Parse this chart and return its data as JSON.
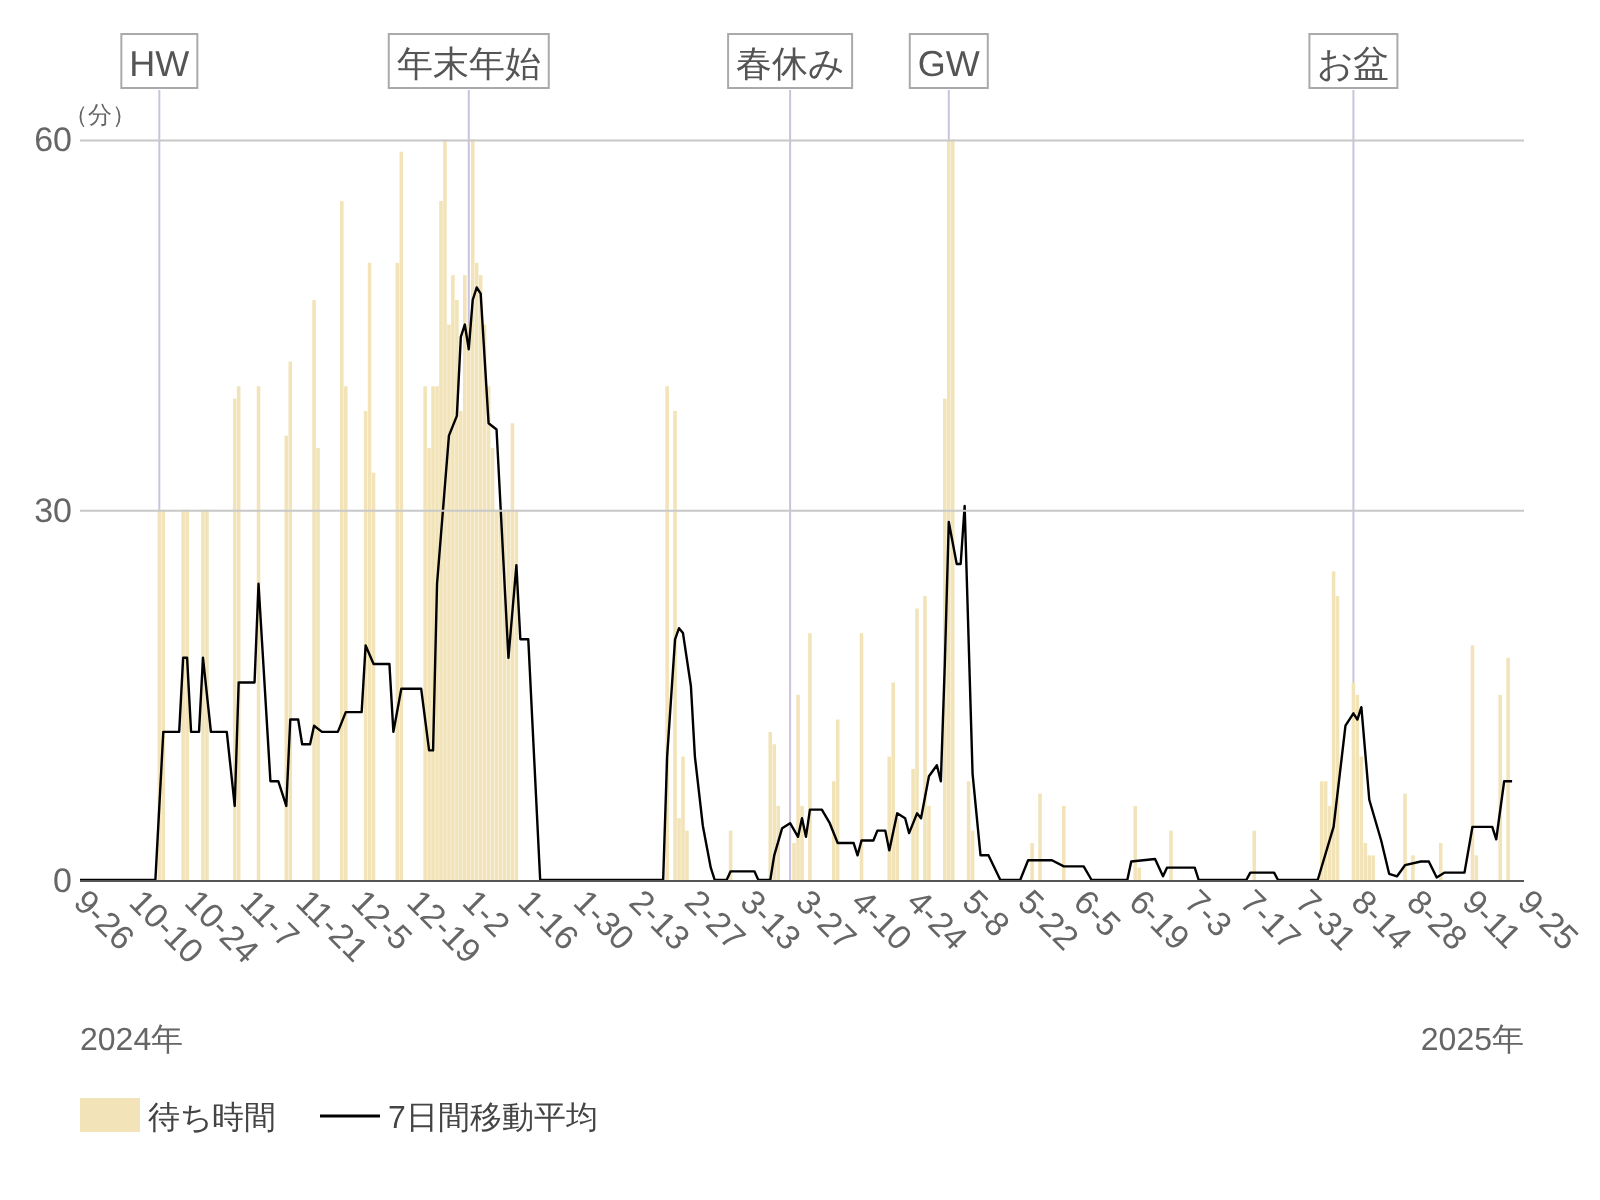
{
  "chart_data": {
    "type": "bar",
    "ylabel": "（分）",
    "xlim": [
      "2024-09-26",
      "2025-09-25"
    ],
    "ylim": [
      0,
      64
    ],
    "yticks": [
      0,
      30,
      60
    ],
    "grid": "y",
    "legend": "bottom left",
    "xticks": [
      {
        "value": "2024-09-26",
        "label": "9-26"
      },
      {
        "value": "2024-10-10",
        "label": "10-10"
      },
      {
        "value": "2024-10-24",
        "label": "10-24"
      },
      {
        "value": "2024-11-07",
        "label": "11-7"
      },
      {
        "value": "2024-11-21",
        "label": "11-21"
      },
      {
        "value": "2024-12-05",
        "label": "12-5"
      },
      {
        "value": "2024-12-19",
        "label": "12-19"
      },
      {
        "value": "2025-01-02",
        "label": "1-2"
      },
      {
        "value": "2025-01-16",
        "label": "1-16"
      },
      {
        "value": "2025-01-30",
        "label": "1-30"
      },
      {
        "value": "2025-02-13",
        "label": "2-13"
      },
      {
        "value": "2025-02-27",
        "label": "2-27"
      },
      {
        "value": "2025-03-13",
        "label": "3-13"
      },
      {
        "value": "2025-03-27",
        "label": "3-27"
      },
      {
        "value": "2025-04-10",
        "label": "4-10"
      },
      {
        "value": "2025-04-24",
        "label": "4-24"
      },
      {
        "value": "2025-05-08",
        "label": "5-8"
      },
      {
        "value": "2025-05-22",
        "label": "5-22"
      },
      {
        "value": "2025-06-05",
        "label": "6-5"
      },
      {
        "value": "2025-06-19",
        "label": "6-19"
      },
      {
        "value": "2025-07-03",
        "label": "7-3"
      },
      {
        "value": "2025-07-17",
        "label": "7-17"
      },
      {
        "value": "2025-07-31",
        "label": "7-31"
      },
      {
        "value": "2025-08-14",
        "label": "8-14"
      },
      {
        "value": "2025-08-28",
        "label": "8-28"
      },
      {
        "value": "2025-09-11",
        "label": "9-11"
      },
      {
        "value": "2025-09-25",
        "label": "9-25"
      }
    ],
    "annotations": [
      "2024年",
      "2025年"
    ],
    "ref_lines": [
      {
        "axis": "x",
        "value": "2024-10-16",
        "label": "HW",
        "color": "#c9c3dd"
      },
      {
        "axis": "x",
        "value": "2025-01-02",
        "label": "年末年始",
        "color": "#c9c3dd"
      },
      {
        "axis": "x",
        "value": "2025-03-24",
        "label": "春休み",
        "color": "#c9c3dd"
      },
      {
        "axis": "x",
        "value": "2025-05-03",
        "label": "GW",
        "color": "#c9c3dd"
      },
      {
        "axis": "x",
        "value": "2025-08-13",
        "label": "お盆",
        "color": "#c9c3dd"
      }
    ],
    "series": [
      {
        "name": "待ち時間",
        "color": "#f2e4b8",
        "x": [
          "2024-10-16",
          "2024-10-17",
          "2024-10-22",
          "2024-10-23",
          "2024-10-27",
          "2024-10-28",
          "2024-11-04",
          "2024-11-05",
          "2024-11-10",
          "2024-11-17",
          "2024-11-18",
          "2024-11-24",
          "2024-11-25",
          "2024-12-01",
          "2024-12-02",
          "2024-12-07",
          "2024-12-08",
          "2024-12-09",
          "2024-12-15",
          "2024-12-16",
          "2024-12-22",
          "2024-12-23",
          "2024-12-24",
          "2024-12-25",
          "2024-12-26",
          "2024-12-27",
          "2024-12-28",
          "2024-12-29",
          "2024-12-30",
          "2024-12-31",
          "2025-01-01",
          "2025-01-02",
          "2025-01-03",
          "2025-01-04",
          "2025-01-05",
          "2025-01-06",
          "2025-01-07",
          "2025-01-08",
          "2025-01-09",
          "2025-01-10",
          "2025-01-11",
          "2025-01-12",
          "2025-01-13",
          "2025-01-14",
          "2025-02-21",
          "2025-02-23",
          "2025-02-24",
          "2025-02-25",
          "2025-02-26",
          "2025-03-09",
          "2025-03-19",
          "2025-03-20",
          "2025-03-21",
          "2025-03-25",
          "2025-03-26",
          "2025-03-27",
          "2025-03-29",
          "2025-04-04",
          "2025-04-05",
          "2025-04-11",
          "2025-04-18",
          "2025-04-19",
          "2025-04-20",
          "2025-04-24",
          "2025-04-25",
          "2025-04-27",
          "2025-04-28",
          "2025-05-02",
          "2025-05-03",
          "2025-05-04",
          "2025-05-08",
          "2025-05-09",
          "2025-05-24",
          "2025-05-26",
          "2025-06-01",
          "2025-06-19",
          "2025-06-20",
          "2025-06-28",
          "2025-07-19",
          "2025-08-05",
          "2025-08-06",
          "2025-08-07",
          "2025-08-08",
          "2025-08-09",
          "2025-08-13",
          "2025-08-14",
          "2025-08-15",
          "2025-08-16",
          "2025-08-17",
          "2025-08-18",
          "2025-08-26",
          "2025-08-28",
          "2025-09-04",
          "2025-09-12",
          "2025-09-13",
          "2025-09-19",
          "2025-09-21"
        ],
        "values": [
          30,
          30,
          30,
          30,
          30,
          30,
          39,
          40,
          40,
          36,
          42,
          47,
          35,
          55,
          40,
          38,
          50,
          33,
          50,
          59,
          40,
          35,
          40,
          40,
          55,
          60,
          45,
          49,
          47,
          38,
          49,
          45,
          60,
          50,
          49,
          45,
          40,
          35,
          30,
          30,
          30,
          30,
          37,
          30,
          40,
          38,
          5,
          10,
          4,
          4,
          12,
          11,
          6,
          3,
          15,
          6,
          20,
          8,
          13,
          20,
          10,
          16,
          5,
          9,
          22,
          23,
          6,
          39,
          60,
          60,
          8,
          4,
          3,
          7,
          6,
          6,
          1,
          4,
          4,
          8,
          8,
          6,
          25,
          23,
          16,
          15,
          10,
          3,
          2,
          2,
          7,
          2,
          3,
          19,
          2,
          15,
          18
        ]
      },
      {
        "name": "7日間移動平均",
        "type": "line",
        "color": "#000000",
        "x": [
          "2024-09-26",
          "2024-10-15",
          "2024-10-17",
          "2024-10-21",
          "2024-10-22",
          "2024-10-23",
          "2024-10-24",
          "2024-10-26",
          "2024-10-27",
          "2024-10-29",
          "2024-11-02",
          "2024-11-04",
          "2024-11-05",
          "2024-11-09",
          "2024-11-10",
          "2024-11-13",
          "2024-11-15",
          "2024-11-17",
          "2024-11-18",
          "2024-11-20",
          "2024-11-21",
          "2024-11-23",
          "2024-11-24",
          "2024-11-26",
          "2024-11-30",
          "2024-12-02",
          "2024-12-06",
          "2024-12-07",
          "2024-12-09",
          "2024-12-13",
          "2024-12-14",
          "2024-12-16",
          "2024-12-21",
          "2024-12-23",
          "2024-12-24",
          "2024-12-25",
          "2024-12-28",
          "2024-12-30",
          "2024-12-31",
          "2025-01-01",
          "2025-01-02",
          "2025-01-03",
          "2025-01-04",
          "2025-01-05",
          "2025-01-07",
          "2025-01-09",
          "2025-01-12",
          "2025-01-14",
          "2025-01-15",
          "2025-01-17",
          "2025-01-20",
          "2025-02-20",
          "2025-02-21",
          "2025-02-23",
          "2025-02-24",
          "2025-02-25",
          "2025-02-27",
          "2025-02-28",
          "2025-03-02",
          "2025-03-04",
          "2025-03-05",
          "2025-03-08",
          "2025-03-09",
          "2025-03-15",
          "2025-03-16",
          "2025-03-19",
          "2025-03-20",
          "2025-03-22",
          "2025-03-24",
          "2025-03-26",
          "2025-03-27",
          "2025-03-28",
          "2025-03-29",
          "2025-04-01",
          "2025-04-03",
          "2025-04-05",
          "2025-04-09",
          "2025-04-10",
          "2025-04-11",
          "2025-04-14",
          "2025-04-15",
          "2025-04-17",
          "2025-04-18",
          "2025-04-20",
          "2025-04-22",
          "2025-04-23",
          "2025-04-25",
          "2025-04-26",
          "2025-04-28",
          "2025-04-30",
          "2025-05-01",
          "2025-05-02",
          "2025-05-03",
          "2025-05-05",
          "2025-05-06",
          "2025-05-07",
          "2025-05-09",
          "2025-05-11",
          "2025-05-13",
          "2025-05-16",
          "2025-05-21",
          "2025-05-23",
          "2025-05-29",
          "2025-06-01",
          "2025-06-06",
          "2025-06-08",
          "2025-06-17",
          "2025-06-18",
          "2025-06-24",
          "2025-06-26",
          "2025-06-27",
          "2025-07-04",
          "2025-07-05",
          "2025-07-17",
          "2025-07-18",
          "2025-07-24",
          "2025-07-25",
          "2025-08-04",
          "2025-08-08",
          "2025-08-11",
          "2025-08-13",
          "2025-08-14",
          "2025-08-15",
          "2025-08-17",
          "2025-08-20",
          "2025-08-22",
          "2025-08-24",
          "2025-08-26",
          "2025-08-30",
          "2025-09-01",
          "2025-09-03",
          "2025-09-05",
          "2025-09-10",
          "2025-09-12",
          "2025-09-17",
          "2025-09-18",
          "2025-09-20",
          "2025-09-22"
        ],
        "values": [
          0,
          0,
          12,
          12,
          18,
          18,
          12,
          12,
          18,
          12,
          12,
          6,
          16,
          16,
          24,
          8,
          8,
          6,
          13,
          13,
          11,
          11,
          12.5,
          12,
          12,
          13.6,
          13.6,
          19,
          17.5,
          17.5,
          12,
          15.5,
          15.5,
          10.5,
          10.5,
          24,
          36,
          37.6,
          44,
          45,
          43,
          47,
          48,
          47.5,
          37,
          36.5,
          18,
          25.5,
          19.5,
          19.5,
          0,
          0,
          10,
          19.5,
          20.4,
          20,
          15.7,
          10,
          4.4,
          1,
          0,
          0,
          0.7,
          0.7,
          0,
          0,
          2,
          4.2,
          4.6,
          3.5,
          5,
          3.5,
          5.7,
          5.7,
          4.6,
          3,
          3,
          2,
          3.2,
          3.2,
          4,
          4,
          2.4,
          5.4,
          5,
          3.8,
          5.4,
          5,
          8.4,
          9.3,
          8,
          17.5,
          29,
          25.6,
          25.6,
          30.3,
          8.6,
          2,
          2,
          0,
          0,
          1.6,
          1.6,
          1.1,
          1.1,
          0,
          0,
          1.5,
          1.7,
          0.3,
          1,
          1,
          0,
          0,
          0.6,
          0.6,
          0,
          0,
          4.3,
          12.5,
          13.5,
          13,
          14,
          6.5,
          3.2,
          0.5,
          0.3,
          1.2,
          1.5,
          1.5,
          0.2,
          0.6,
          0.6,
          4.3,
          4.3,
          3.3,
          8,
          8
        ]
      }
    ]
  }
}
